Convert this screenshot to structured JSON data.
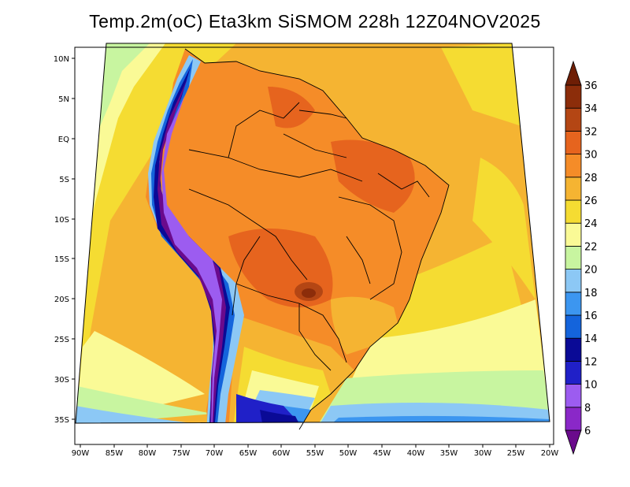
{
  "title": "Temp.2m(oC) Eta3km SiSMOM 228h 12Z04NOV2025",
  "map": {
    "lat_labels": [
      "10N",
      "5N",
      "EQ",
      "5S",
      "10S",
      "15S",
      "20S",
      "25S",
      "30S",
      "35S"
    ],
    "lon_labels": [
      "90W",
      "85W",
      "80W",
      "75W",
      "70W",
      "65W",
      "60W",
      "55W",
      "50W",
      "45W",
      "40W",
      "35W",
      "30W",
      "25W",
      "20W"
    ],
    "extent": {
      "lon_min": -90,
      "lon_max": -20,
      "lat_min": -37,
      "lat_max": 11
    }
  },
  "colorbar": {
    "levels": [
      "6",
      "8",
      "10",
      "12",
      "14",
      "16",
      "18",
      "20",
      "22",
      "24",
      "26",
      "28",
      "30",
      "32",
      "34",
      "36"
    ],
    "colors": [
      "#6a0a8c",
      "#8a28c8",
      "#9c5cf0",
      "#2020c8",
      "#0a0a96",
      "#1464dc",
      "#3c96f0",
      "#8cc8f5",
      "#c8f5a0",
      "#fafa96",
      "#f5dc32",
      "#f5b432",
      "#f58c28",
      "#e6641e",
      "#b44614",
      "#8c2d0a",
      "#6e1e05"
    ]
  },
  "colors": {
    "ocean_base": "#f5b432",
    "land_hot": "#f58c28",
    "pantanal": "#b44614",
    "andes": "#6a0a8c"
  }
}
